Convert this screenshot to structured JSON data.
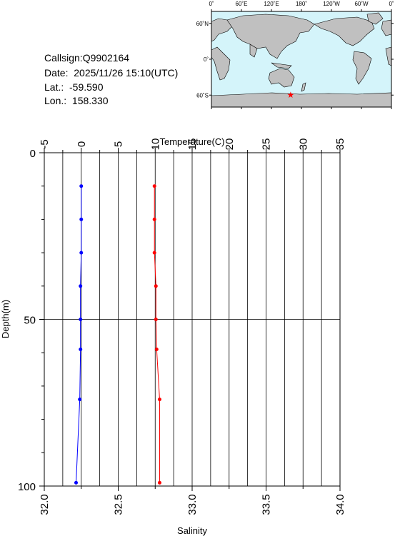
{
  "info": {
    "callsign": "Callsign:Q9902164",
    "date": "Date:  2025/11/26 15:10(UTC)",
    "lat": "Lat.:  -59.590",
    "lon": "Lon.:  158.330"
  },
  "map": {
    "lon_labels": [
      "0˚",
      "60˚E",
      "120˚E",
      "180˚",
      "120˚W",
      "60˚W",
      "0˚"
    ],
    "lat_labels": [
      "60˚N",
      "0˚",
      "60˚S"
    ],
    "station": {
      "lat": -59.59,
      "lon": 158.33
    },
    "colors": {
      "ocean": "#d4f4fa",
      "land": "#c0c0c0",
      "marker": "#ff0000"
    }
  },
  "chart_data": {
    "type": "line",
    "temperature_axis": {
      "label": "Temperature(C)",
      "range": [
        -5,
        35
      ],
      "ticks": [
        "-5",
        "0",
        "5",
        "10",
        "15",
        "20",
        "25",
        "30",
        "35"
      ]
    },
    "salinity_axis": {
      "label": "Salinity",
      "range": [
        32.0,
        34.0
      ],
      "ticks": [
        "32.0",
        "32.5",
        "33.0",
        "33.5",
        "34.0"
      ]
    },
    "depth_axis": {
      "label": "Depth(m)",
      "range": [
        0,
        100
      ],
      "inverted": true,
      "ticks": [
        "0",
        "50",
        "100"
      ]
    },
    "series": [
      {
        "quantity": "temperature",
        "color": "#ff0000",
        "points": [
          {
            "depth": 10,
            "value": 9.9
          },
          {
            "depth": 20,
            "value": 9.9
          },
          {
            "depth": 30,
            "value": 9.9
          },
          {
            "depth": 40,
            "value": 10.1
          },
          {
            "depth": 50,
            "value": 10.1
          },
          {
            "depth": 59,
            "value": 10.2
          },
          {
            "depth": 74,
            "value": 10.6
          },
          {
            "depth": 99,
            "value": 10.6
          }
        ]
      },
      {
        "quantity": "salinity",
        "color": "#0000ff",
        "points": [
          {
            "depth": 10,
            "value": 32.25
          },
          {
            "depth": 20,
            "value": 32.25
          },
          {
            "depth": 30,
            "value": 32.25
          },
          {
            "depth": 40,
            "value": 32.245
          },
          {
            "depth": 50,
            "value": 32.245
          },
          {
            "depth": 59,
            "value": 32.245
          },
          {
            "depth": 74,
            "value": 32.24
          },
          {
            "depth": 99,
            "value": 32.215
          }
        ]
      }
    ]
  }
}
